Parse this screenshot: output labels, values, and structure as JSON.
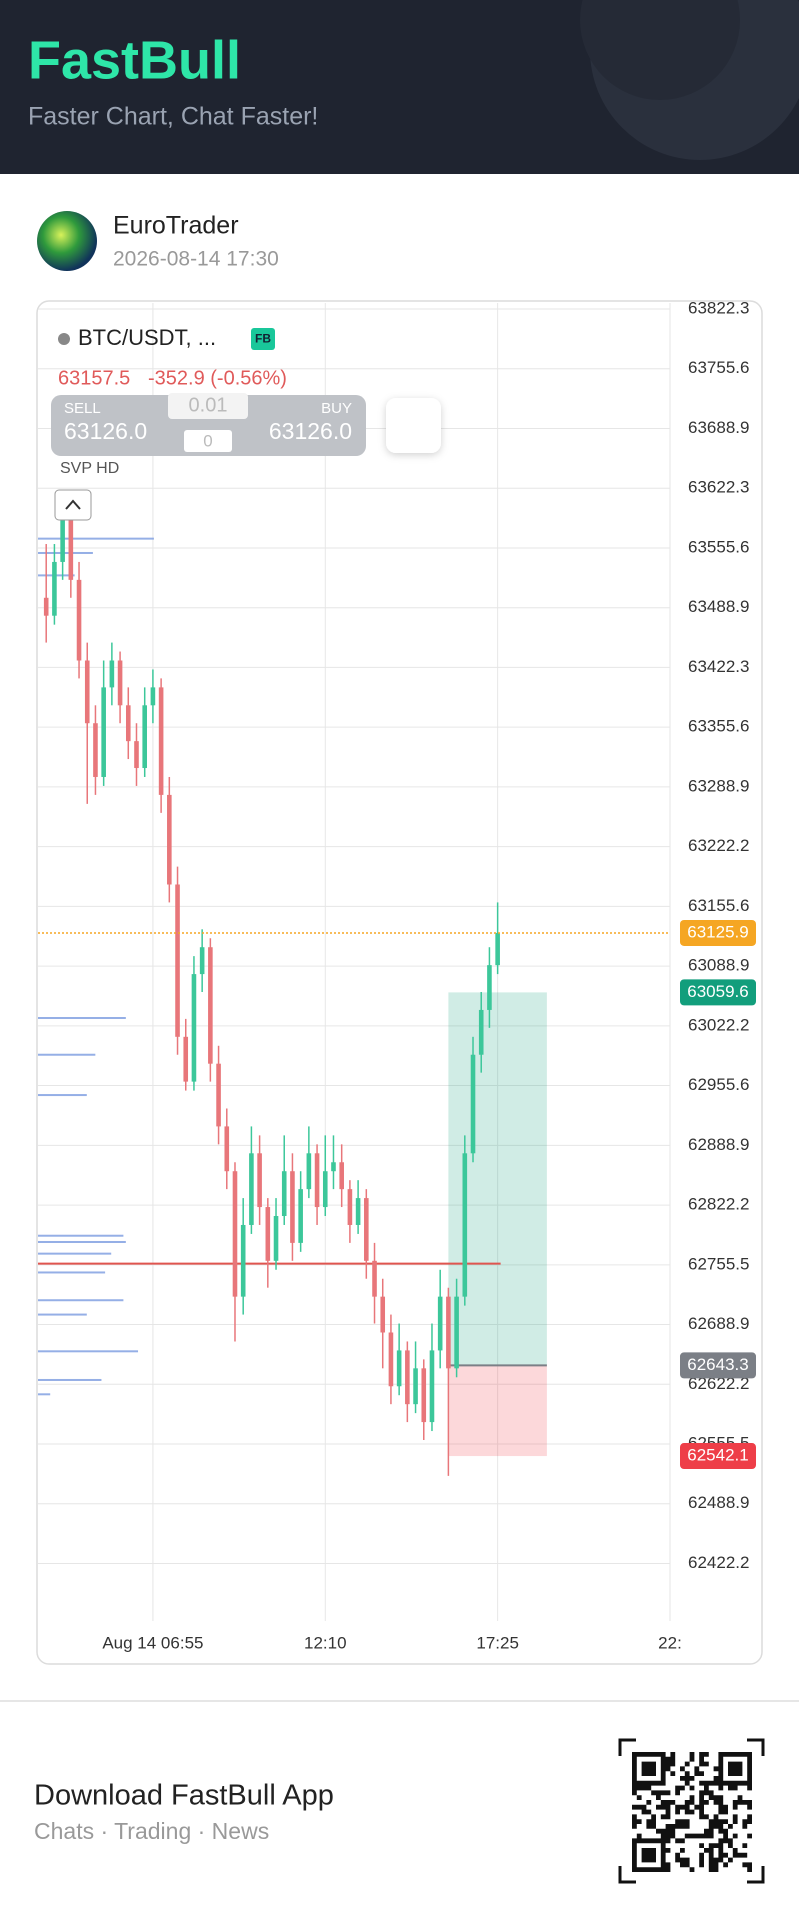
{
  "header": {
    "title": "FastBull",
    "subtitle": "Faster Chart, Chat Faster!"
  },
  "post": {
    "author": "EuroTrader",
    "date": "2026-08-14 17:30"
  },
  "overlay": {
    "symbol": "BTC/USDT, ...",
    "badge": "FB",
    "price": 63157.5,
    "change": "-352.9 (-0.56%)",
    "sell_label": "SELL",
    "sell_price": "63126.0",
    "buy_label": "BUY",
    "buy_price": "63126.0",
    "quantity": "0.01",
    "quantity_2": "0",
    "indicator": "SVP HD"
  },
  "chart_data": {
    "type": "candlestick",
    "up_color": "#3cc79a",
    "down_color": "#e8767a",
    "grid": true,
    "ylim": [
      62358,
      63829
    ],
    "yticks": [
      63822.3,
      63755.6,
      63688.9,
      63622.3,
      63555.6,
      63488.9,
      63422.3,
      63355.6,
      63288.9,
      63222.2,
      63155.6,
      63088.9,
      63022.2,
      62955.6,
      62888.9,
      62822.2,
      62755.5,
      62688.9,
      62622.2,
      62555.5,
      62488.9,
      62422.2
    ],
    "xlim": [
      -1,
      76
    ],
    "xticks": [
      {
        "value": 13,
        "label": "Aug 14 06:55"
      },
      {
        "value": 34,
        "label": "12:10"
      },
      {
        "value": 55,
        "label": "17:25"
      },
      {
        "value": 76,
        "label": "22:"
      }
    ],
    "ohlc": [
      [
        63500,
        63560,
        63450,
        63480
      ],
      [
        63480,
        63560,
        63470,
        63540
      ],
      [
        63540,
        63600,
        63520,
        63590
      ],
      [
        63590,
        63595,
        63500,
        63520
      ],
      [
        63520,
        63540,
        63410,
        63430
      ],
      [
        63430,
        63450,
        63270,
        63360
      ],
      [
        63360,
        63380,
        63280,
        63300
      ],
      [
        63300,
        63430,
        63290,
        63400
      ],
      [
        63400,
        63450,
        63380,
        63430
      ],
      [
        63430,
        63440,
        63360,
        63380
      ],
      [
        63380,
        63400,
        63320,
        63340
      ],
      [
        63340,
        63360,
        63290,
        63310
      ],
      [
        63310,
        63400,
        63300,
        63380
      ],
      [
        63380,
        63420,
        63360,
        63400
      ],
      [
        63400,
        63410,
        63260,
        63280
      ],
      [
        63280,
        63300,
        63160,
        63180
      ],
      [
        63180,
        63200,
        62990,
        63010
      ],
      [
        63010,
        63030,
        62950,
        62960
      ],
      [
        62960,
        63100,
        62950,
        63080
      ],
      [
        63080,
        63130,
        63060,
        63110
      ],
      [
        63110,
        63120,
        62960,
        62980
      ],
      [
        62980,
        63000,
        62890,
        62910
      ],
      [
        62910,
        62930,
        62840,
        62860
      ],
      [
        62860,
        62870,
        62670,
        62720
      ],
      [
        62720,
        62830,
        62700,
        62800
      ],
      [
        62800,
        62910,
        62790,
        62880
      ],
      [
        62880,
        62900,
        62800,
        62820
      ],
      [
        62820,
        62830,
        62730,
        62760
      ],
      [
        62760,
        62830,
        62750,
        62810
      ],
      [
        62810,
        62900,
        62800,
        62860
      ],
      [
        62860,
        62880,
        62760,
        62780
      ],
      [
        62780,
        62860,
        62770,
        62840
      ],
      [
        62840,
        62910,
        62830,
        62880
      ],
      [
        62880,
        62890,
        62800,
        62820
      ],
      [
        62820,
        62900,
        62810,
        62860
      ],
      [
        62860,
        62900,
        62840,
        62870
      ],
      [
        62870,
        62890,
        62820,
        62840
      ],
      [
        62840,
        62850,
        62780,
        62800
      ],
      [
        62800,
        62850,
        62790,
        62830
      ],
      [
        62830,
        62840,
        62740,
        62760
      ],
      [
        62760,
        62780,
        62690,
        62720
      ],
      [
        62720,
        62740,
        62640,
        62680
      ],
      [
        62680,
        62700,
        62600,
        62620
      ],
      [
        62620,
        62690,
        62610,
        62660
      ],
      [
        62660,
        62670,
        62580,
        62600
      ],
      [
        62600,
        62670,
        62590,
        62640
      ],
      [
        62640,
        62650,
        62560,
        62580
      ],
      [
        62580,
        62690,
        62570,
        62660
      ],
      [
        62660,
        62750,
        62640,
        62720
      ],
      [
        62720,
        62730,
        62520,
        62640
      ],
      [
        62640,
        62740,
        62630,
        62720
      ],
      [
        62720,
        62900,
        62710,
        62880
      ],
      [
        62880,
        63010,
        62870,
        62990
      ],
      [
        62990,
        63060,
        62970,
        63040
      ],
      [
        63040,
        63110,
        63020,
        63090
      ],
      [
        63090,
        63160,
        63080,
        63125.9
      ]
    ],
    "last_price": 63125.9,
    "last_price_color": "#f5a623",
    "hline": {
      "value": 62756.8,
      "color": "#e0554f"
    },
    "position": {
      "start": 49,
      "end": 61,
      "take_profit": 63059.6,
      "entry": 62643.3,
      "stop_loss": 62542.1,
      "tp_color": "#129e7c",
      "entry_color": "#7b7f86",
      "sl_color": "#ee3e48"
    },
    "volume_profile": {
      "color": "#7b9be0",
      "prices": [
        63566,
        63550,
        63525,
        63031,
        62990,
        62945,
        62788,
        62781,
        62768,
        62747,
        62716,
        62700,
        62659,
        62627,
        62611
      ],
      "volumes": [
        95,
        45,
        30,
        72,
        47,
        40,
        70,
        72,
        60,
        55,
        70,
        40,
        82,
        52,
        10
      ]
    }
  },
  "footer": {
    "title": "Download FastBull App",
    "subtitle": "Chats · Trading · News"
  }
}
